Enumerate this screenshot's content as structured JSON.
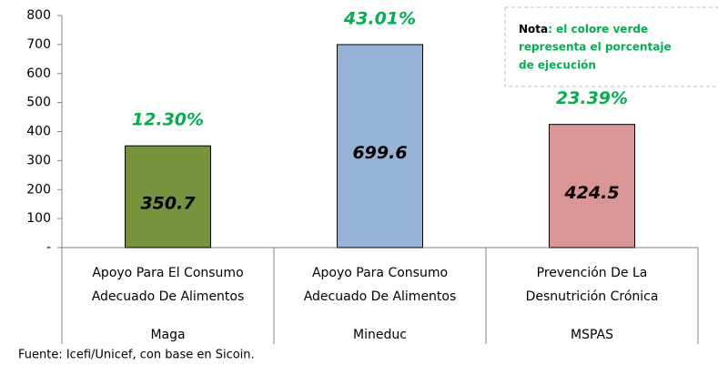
{
  "chart_data": {
    "type": "bar",
    "categories": [
      [
        "Apoyo Para El Consumo",
        "Adecuado De Alimentos"
      ],
      [
        "Apoyo Para Consumo",
        "Adecuado De Alimentos"
      ],
      [
        "Prevención De La",
        "Desnutrición Crónica"
      ]
    ],
    "groups": [
      "Maga",
      "Mineduc",
      "MSPAS"
    ],
    "values": [
      350.7,
      699.6,
      424.5
    ],
    "colors": [
      "#77933c",
      "#95b3d7",
      "#d99694"
    ],
    "annotations": [
      "12.30%",
      "43.01%",
      "23.39%"
    ],
    "ylim": [
      0,
      800
    ],
    "yticks": [
      {
        "value": 0,
        "label": "-"
      },
      100,
      200,
      300,
      400,
      500,
      600,
      700,
      800
    ],
    "grid": false,
    "note": {
      "label": "Nota",
      "lines": [
        ": el colore verde",
        "representa el porcentaje",
        "de ejecución"
      ]
    },
    "source": "Fuente: Icefi/Unicef, con base en Sicoin."
  }
}
